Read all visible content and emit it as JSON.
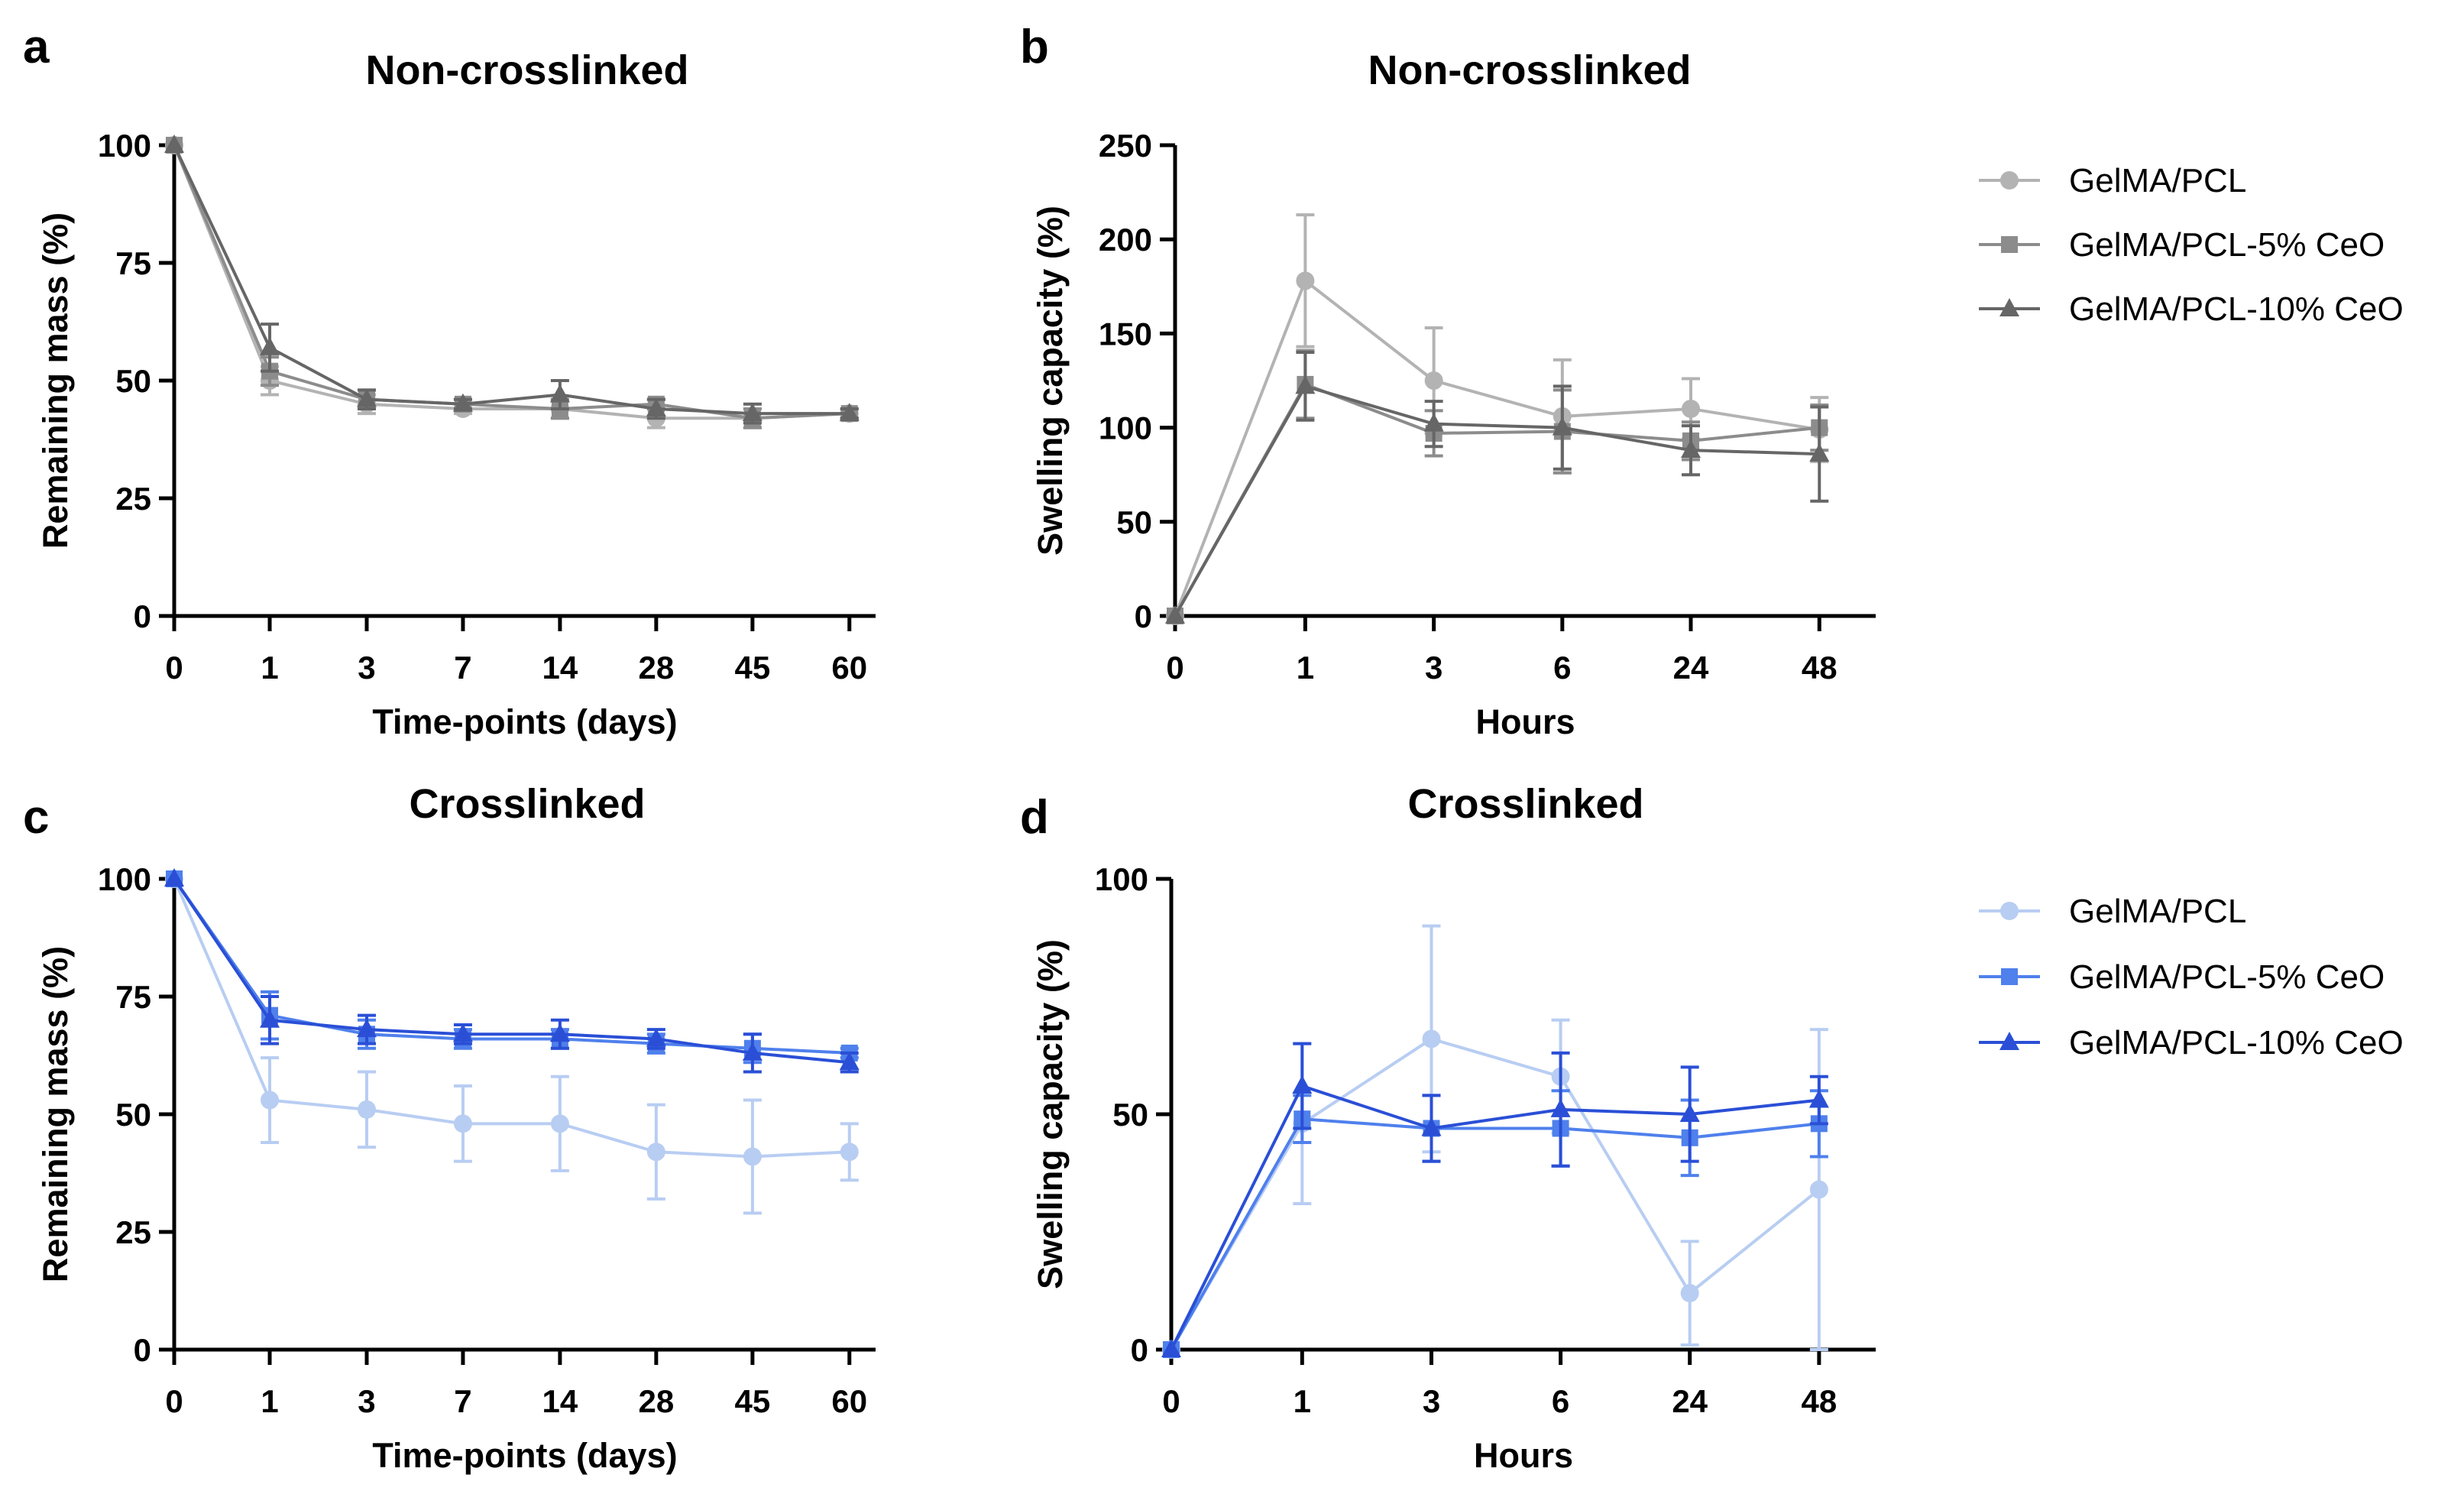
{
  "chart_data": [
    {
      "panel": "a",
      "type": "line",
      "title": "Non-crosslinked",
      "xlabel": "Time-points (days)",
      "ylabel": "Remaining mass  (%)",
      "categories": [
        "0",
        "1",
        "3",
        "7",
        "14",
        "28",
        "45",
        "60"
      ],
      "ylim": [
        0,
        100
      ],
      "yticks": [
        0,
        25,
        50,
        75,
        100
      ],
      "legend": "none",
      "series": [
        {
          "name": "GelMA/PCL",
          "marker": "circle",
          "color": "#b3b3b3",
          "values": [
            100,
            50,
            45,
            44,
            44,
            42,
            42,
            43
          ],
          "errors": [
            0,
            3,
            2,
            1,
            2,
            2,
            2,
            1
          ]
        },
        {
          "name": "GelMA/PCL-5% CeO",
          "marker": "square",
          "color": "#8c8c8c",
          "values": [
            100,
            52,
            46,
            45,
            44,
            45,
            42,
            43
          ],
          "errors": [
            0,
            3,
            2,
            1,
            2,
            1,
            2,
            1
          ]
        },
        {
          "name": "GelMA/PCL-10% CeO",
          "marker": "triangle",
          "color": "#666666",
          "values": [
            100,
            57,
            46,
            45,
            47,
            44,
            43,
            43
          ],
          "errors": [
            0,
            5,
            2,
            1,
            3,
            2,
            2,
            1
          ]
        }
      ]
    },
    {
      "panel": "b",
      "type": "line",
      "title": "Non-crosslinked",
      "xlabel": "Hours",
      "ylabel": "Swelling capacity (%)",
      "categories": [
        "0",
        "1",
        "3",
        "6",
        "24",
        "48"
      ],
      "ylim": [
        0,
        250
      ],
      "yticks": [
        0,
        50,
        100,
        150,
        200,
        250
      ],
      "legend": "right",
      "series": [
        {
          "name": "GelMA/PCL",
          "marker": "circle",
          "color": "#b3b3b3",
          "values": [
            0,
            178,
            125,
            106,
            110,
            99
          ],
          "errors": [
            0,
            35,
            28,
            30,
            16,
            17
          ]
        },
        {
          "name": "GelMA/PCL-5% CeO",
          "marker": "square",
          "color": "#8c8c8c",
          "values": [
            0,
            123,
            97,
            98,
            93,
            100
          ],
          "errors": [
            0,
            18,
            12,
            22,
            10,
            12
          ]
        },
        {
          "name": "GelMA/PCL-10% CeO",
          "marker": "triangle",
          "color": "#666666",
          "values": [
            0,
            122,
            102,
            100,
            88,
            86
          ],
          "errors": [
            0,
            18,
            12,
            22,
            13,
            25
          ]
        }
      ]
    },
    {
      "panel": "c",
      "type": "line",
      "title": "Crosslinked",
      "xlabel": "Time-points (days)",
      "ylabel": "Remaining mass  (%)",
      "categories": [
        "0",
        "1",
        "3",
        "7",
        "14",
        "28",
        "45",
        "60"
      ],
      "ylim": [
        0,
        100
      ],
      "yticks": [
        0,
        25,
        50,
        75,
        100
      ],
      "legend": "none",
      "series": [
        {
          "name": "GelMA/PCL",
          "marker": "circle",
          "color": "#b8cdf2",
          "values": [
            100,
            53,
            51,
            48,
            48,
            42,
            41,
            42
          ],
          "errors": [
            0,
            9,
            8,
            8,
            10,
            10,
            12,
            6
          ]
        },
        {
          "name": "GelMA/PCL-5% CeO",
          "marker": "square",
          "color": "#4f80ec",
          "values": [
            100,
            71,
            67,
            66,
            66,
            65,
            64,
            63
          ],
          "errors": [
            0,
            5,
            3,
            2,
            2,
            2,
            3,
            1
          ]
        },
        {
          "name": "GelMA/PCL-10% CeO",
          "marker": "triangle",
          "color": "#2a4fd6",
          "values": [
            100,
            70,
            68,
            67,
            67,
            66,
            63,
            61
          ],
          "errors": [
            0,
            5,
            3,
            2,
            3,
            2,
            4,
            2
          ]
        }
      ]
    },
    {
      "panel": "d",
      "type": "line",
      "title": "Crosslinked",
      "xlabel": "Hours",
      "ylabel": "Swelling capacity (%)",
      "categories": [
        "0",
        "1",
        "3",
        "6",
        "24",
        "48"
      ],
      "ylim": [
        0,
        100
      ],
      "yticks": [
        0,
        50,
        100
      ],
      "legend": "right",
      "series": [
        {
          "name": "GelMA/PCL",
          "marker": "circle",
          "color": "#b8cdf2",
          "values": [
            0,
            48,
            66,
            58,
            12,
            34
          ],
          "errors": [
            0,
            17,
            24,
            12,
            11,
            34
          ]
        },
        {
          "name": "GelMA/PCL-5% CeO",
          "marker": "square",
          "color": "#4f80ec",
          "values": [
            0,
            49,
            47,
            47,
            45,
            48
          ],
          "errors": [
            0,
            5,
            7,
            8,
            8,
            7
          ]
        },
        {
          "name": "GelMA/PCL-10% CeO",
          "marker": "triangle",
          "color": "#2a4fd6",
          "values": [
            0,
            56,
            47,
            51,
            50,
            53
          ],
          "errors": [
            0,
            9,
            7,
            12,
            10,
            5
          ]
        }
      ]
    }
  ]
}
